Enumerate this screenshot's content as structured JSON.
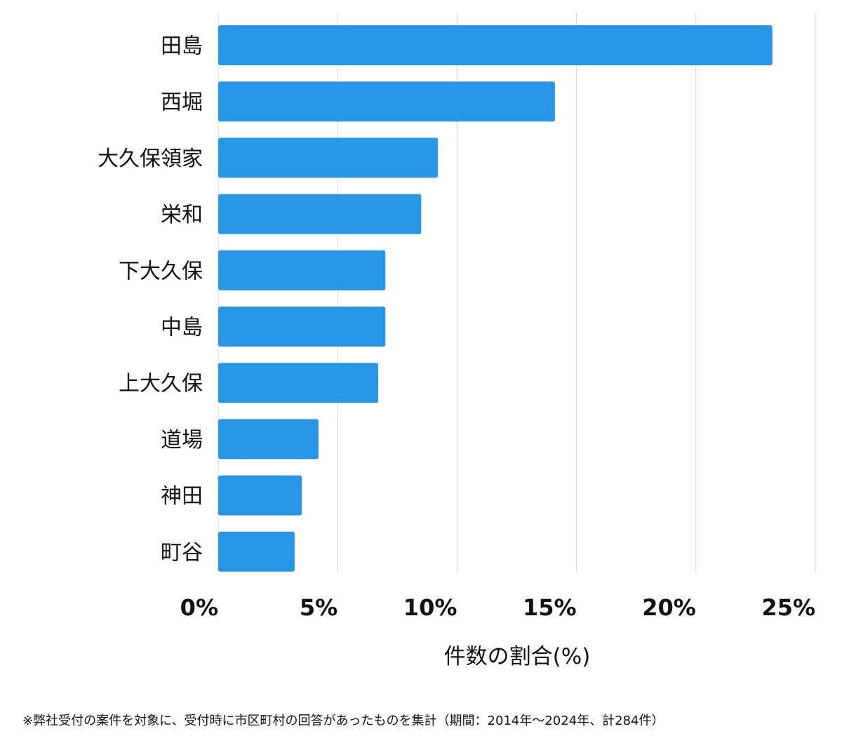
{
  "chart_data": {
    "type": "bar",
    "orientation": "horizontal",
    "categories": [
      "田島",
      "西堀",
      "大久保領家",
      "栄和",
      "下大久保",
      "中島",
      "上大久保",
      "道場",
      "神田",
      "町谷"
    ],
    "values": [
      23.2,
      14.1,
      9.2,
      8.5,
      7.0,
      7.0,
      6.7,
      4.2,
      3.5,
      3.2
    ],
    "xlim": [
      0,
      25
    ],
    "xticks": [
      0,
      5,
      10,
      15,
      20,
      25
    ],
    "xtick_labels": [
      "0%",
      "5%",
      "10%",
      "15%",
      "20%",
      "25%"
    ],
    "xlabel": "件数の割合(%)",
    "ylabel": "",
    "grid": true,
    "bar_color": "#2896e6",
    "grid_color": "#d9d9d9"
  },
  "footnote": "※弊社受付の案件を対象に、受付時に市区町村の回答があったものを集計（期間：2014年～2024年、計284件）"
}
